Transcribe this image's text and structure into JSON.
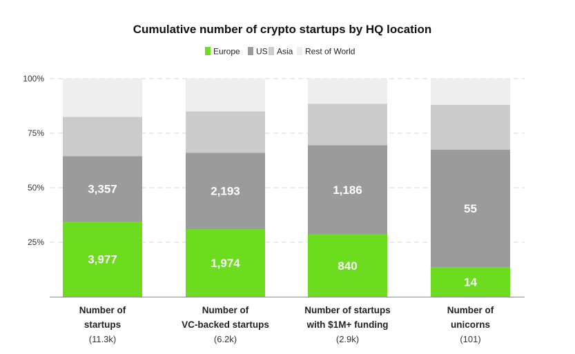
{
  "chart_data": {
    "type": "bar",
    "stacked": true,
    "percent_stacked": true,
    "title": "Cumulative number of crypto startups by HQ location",
    "legend_position": "top-center",
    "ylim": [
      0,
      100
    ],
    "y_ticks": [
      25,
      50,
      75,
      100
    ],
    "y_tick_labels": [
      "25%",
      "50%",
      "75%",
      "100%"
    ],
    "grid": true,
    "categories": [
      {
        "line1": "Number of",
        "line2": "startups",
        "sub": "(11.3k)"
      },
      {
        "line1": "Number of",
        "line2": "VC-backed startups",
        "sub": "(6.2k)"
      },
      {
        "line1": "Number of startups",
        "line2": "with $1M+ funding",
        "sub": "(2.9k)"
      },
      {
        "line1": "Number of",
        "line2": "unicorns",
        "sub": "(101)"
      }
    ],
    "series": [
      {
        "name": "Europe",
        "color": "#6cdc1e",
        "values": [
          34.5,
          31.0,
          28.5,
          13.5
        ],
        "labels": [
          "3,977",
          "1,974",
          "840",
          "14"
        ]
      },
      {
        "name": "US",
        "color": "#9b9b9b",
        "values": [
          30.0,
          35.0,
          41.0,
          54.0
        ],
        "labels": [
          "3,357",
          "2,193",
          "1,186",
          "55"
        ]
      },
      {
        "name": "Asia",
        "color": "#cbcbcb",
        "values": [
          18.0,
          19.0,
          19.0,
          20.5
        ],
        "labels": [
          "",
          "",
          "",
          ""
        ]
      },
      {
        "name": "Rest of World",
        "color": "#eeeeee",
        "values": [
          17.5,
          15.0,
          11.5,
          12.0
        ],
        "labels": [
          "",
          "",
          "",
          ""
        ]
      }
    ]
  }
}
